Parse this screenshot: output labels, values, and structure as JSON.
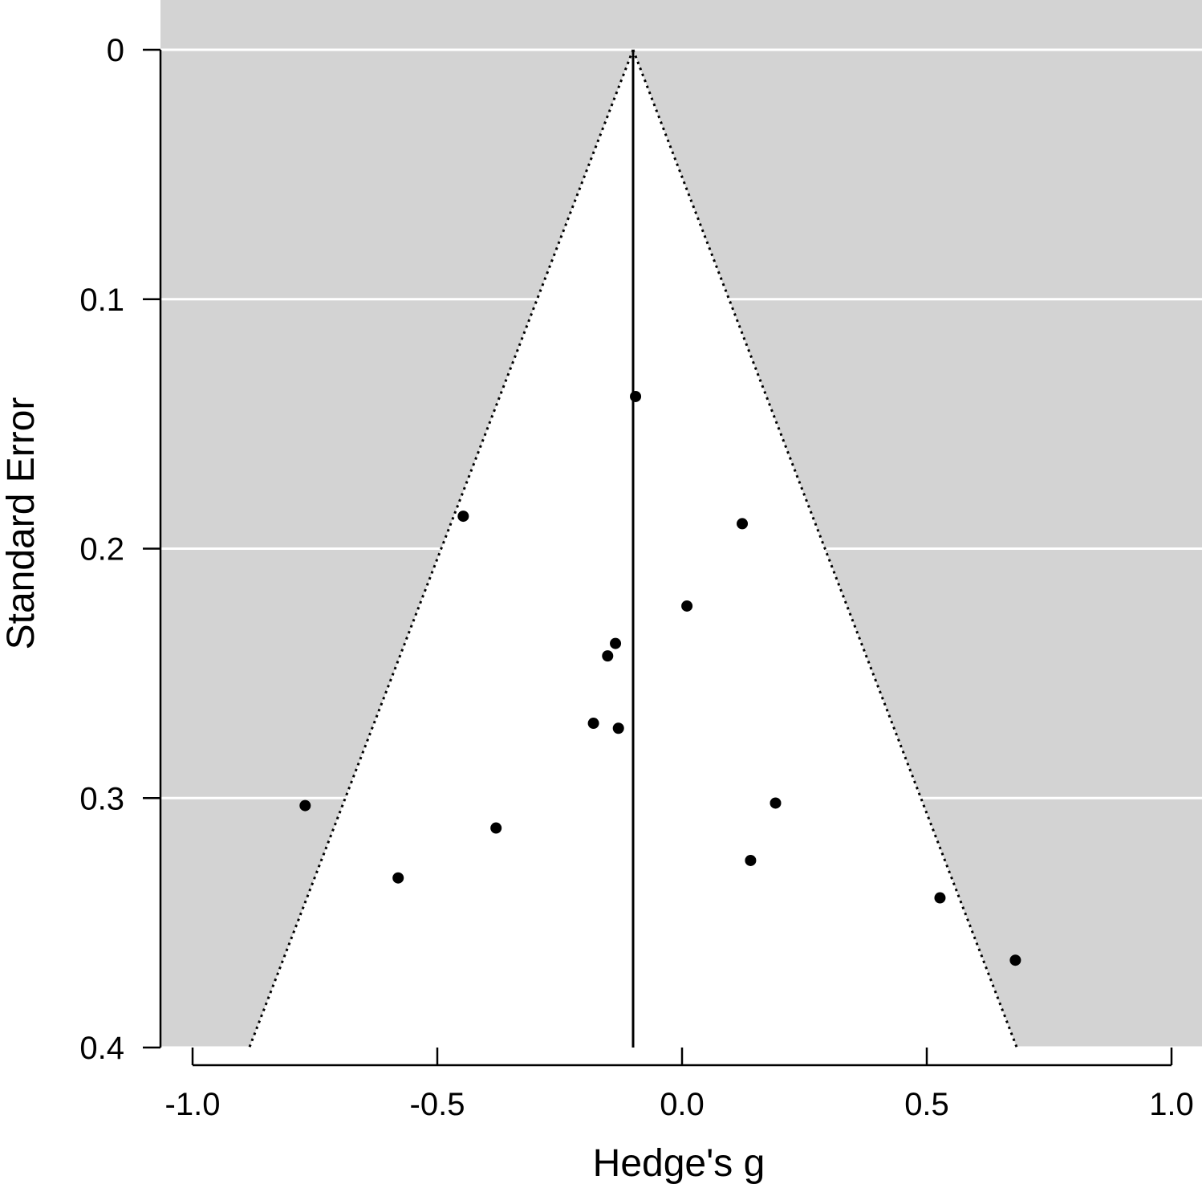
{
  "chart_data": {
    "type": "scatter",
    "title": "",
    "xlabel": "Hedge's g",
    "ylabel": "Standard Error",
    "xlim": [
      -1.06,
      1.06
    ],
    "ylim": [
      0,
      0.4
    ],
    "y_reversed": true,
    "x_ticks": [
      -1.0,
      -0.5,
      0.0,
      0.5,
      1.0
    ],
    "x_tick_labels": [
      "-1.0",
      "-0.5",
      "0.0",
      "0.5",
      "1.0"
    ],
    "y_ticks": [
      0,
      0.1,
      0.2,
      0.3,
      0.4
    ],
    "y_tick_labels": [
      "0",
      "0.1",
      "0.2",
      "0.3",
      "0.4"
    ],
    "grid": true,
    "summary_effect": -0.1,
    "funnel_z": 1.96,
    "colors": {
      "panel_background": "#d3d3d3",
      "funnel_fill": "#ffffff",
      "grid": "#ffffff",
      "points": "#000000"
    },
    "points": [
      {
        "x": -0.095,
        "y": 0.139
      },
      {
        "x": -0.447,
        "y": 0.187
      },
      {
        "x": 0.123,
        "y": 0.19
      },
      {
        "x": 0.01,
        "y": 0.223
      },
      {
        "x": -0.136,
        "y": 0.238
      },
      {
        "x": -0.152,
        "y": 0.243
      },
      {
        "x": -0.181,
        "y": 0.27
      },
      {
        "x": -0.13,
        "y": 0.272
      },
      {
        "x": -0.77,
        "y": 0.303
      },
      {
        "x": 0.191,
        "y": 0.302
      },
      {
        "x": -0.38,
        "y": 0.312
      },
      {
        "x": 0.14,
        "y": 0.325
      },
      {
        "x": -0.58,
        "y": 0.332
      },
      {
        "x": 0.527,
        "y": 0.34
      },
      {
        "x": 0.681,
        "y": 0.365
      }
    ]
  }
}
